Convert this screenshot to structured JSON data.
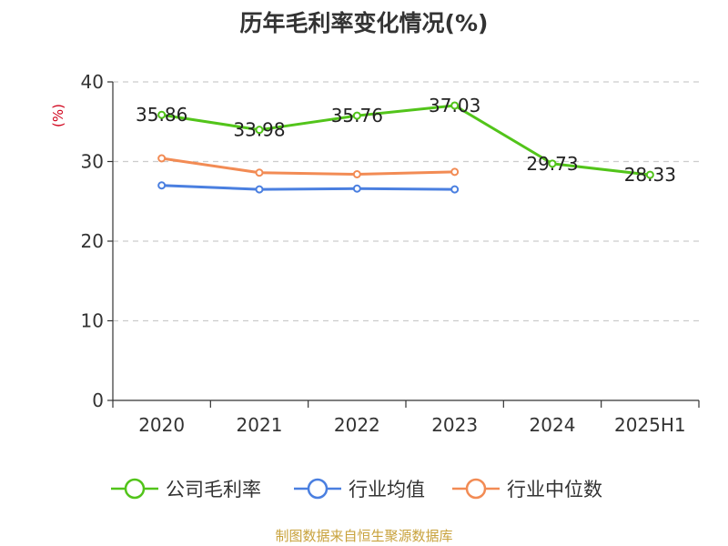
{
  "chart_data": {
    "type": "line",
    "title": "历年毛利率变化情况(%)",
    "ylabel": "(%)",
    "categories": [
      "2020",
      "2021",
      "2022",
      "2023",
      "2024",
      "2025H1"
    ],
    "ylim": [
      0,
      40
    ],
    "yticks": [
      0,
      10,
      20,
      30,
      40
    ],
    "grid": true,
    "legend_position": "bottom",
    "series": [
      {
        "name": "公司毛利率",
        "color": "#52c41a",
        "show_labels": true,
        "values": [
          35.86,
          33.98,
          35.76,
          37.03,
          29.73,
          28.33
        ],
        "labels": [
          "35.86",
          "33.98",
          "35.76",
          "37.03",
          "29.73",
          "28.33"
        ]
      },
      {
        "name": "行业均值",
        "color": "#4a7fe0",
        "show_labels": false,
        "values": [
          27.0,
          26.5,
          26.6,
          26.5,
          null,
          null
        ]
      },
      {
        "name": "行业中位数",
        "color": "#f28b54",
        "show_labels": false,
        "values": [
          30.4,
          28.6,
          28.4,
          28.7,
          null,
          null
        ]
      }
    ]
  },
  "source_note": "制图数据来自恒生聚源数据库"
}
